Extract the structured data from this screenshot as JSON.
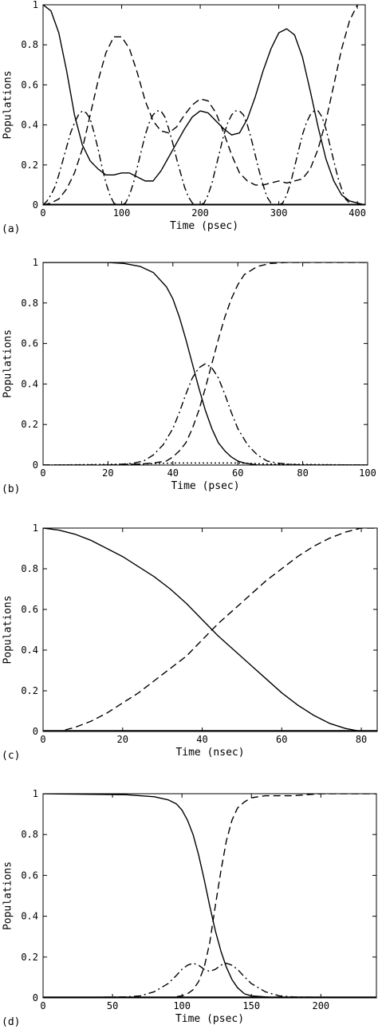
{
  "chart_data": [
    {
      "type": "line",
      "panel_label": "(a)",
      "xlabel": "Time (psec)",
      "ylabel": "Populations",
      "xlim": [
        0,
        410
      ],
      "ylim": [
        0,
        1
      ],
      "xticks": [
        0,
        100,
        200,
        300,
        400
      ],
      "xtick_labels": [
        "0",
        "100",
        "200",
        "300",
        "400"
      ],
      "yticks": [
        0,
        0.2,
        0.4,
        0.6,
        0.8,
        1
      ],
      "ytick_labels": [
        "0",
        "0.2",
        "0.4",
        "0.6",
        "0.8",
        "1"
      ],
      "series": [
        {
          "style": "solid",
          "x": [
            0,
            10,
            20,
            30,
            40,
            50,
            60,
            70,
            80,
            90,
            100,
            110,
            120,
            130,
            140,
            150,
            160,
            170,
            180,
            190,
            200,
            210,
            220,
            230,
            240,
            250,
            260,
            270,
            280,
            290,
            300,
            310,
            320,
            330,
            340,
            350,
            360,
            370,
            380,
            390,
            400,
            410
          ],
          "y": [
            1.0,
            0.97,
            0.86,
            0.67,
            0.45,
            0.3,
            0.22,
            0.18,
            0.15,
            0.15,
            0.16,
            0.16,
            0.14,
            0.12,
            0.12,
            0.17,
            0.24,
            0.31,
            0.38,
            0.44,
            0.47,
            0.46,
            0.42,
            0.38,
            0.35,
            0.36,
            0.43,
            0.54,
            0.67,
            0.78,
            0.86,
            0.88,
            0.85,
            0.74,
            0.57,
            0.39,
            0.23,
            0.12,
            0.05,
            0.02,
            0.01,
            0.0
          ]
        },
        {
          "style": "dashed",
          "x": [
            0,
            10,
            20,
            30,
            40,
            50,
            60,
            70,
            80,
            90,
            100,
            110,
            120,
            130,
            140,
            150,
            160,
            170,
            180,
            190,
            200,
            210,
            220,
            230,
            240,
            250,
            260,
            270,
            280,
            290,
            300,
            310,
            320,
            330,
            340,
            350,
            360,
            370,
            380,
            390,
            400,
            410
          ],
          "y": [
            0.0,
            0.01,
            0.03,
            0.08,
            0.16,
            0.28,
            0.45,
            0.62,
            0.76,
            0.84,
            0.84,
            0.78,
            0.66,
            0.52,
            0.42,
            0.37,
            0.36,
            0.39,
            0.45,
            0.5,
            0.53,
            0.52,
            0.46,
            0.36,
            0.25,
            0.16,
            0.12,
            0.1,
            0.1,
            0.11,
            0.12,
            0.11,
            0.12,
            0.13,
            0.18,
            0.28,
            0.42,
            0.6,
            0.78,
            0.92,
            1.0,
            1.05
          ]
        },
        {
          "style": "dashdot",
          "x": [
            0,
            5,
            10,
            15,
            20,
            25,
            30,
            35,
            40,
            45,
            50,
            55,
            60,
            65,
            70,
            75,
            80,
            85,
            90,
            95,
            100,
            105,
            110,
            115,
            120,
            125,
            130,
            135,
            140,
            145,
            150,
            155,
            160,
            165,
            170,
            175,
            180,
            185,
            190,
            195,
            200,
            205,
            210,
            215,
            220,
            225,
            230,
            235,
            240,
            245,
            250,
            255,
            260,
            265,
            270,
            275,
            280,
            285,
            290,
            295,
            300,
            305,
            310,
            315,
            320,
            325,
            330,
            335,
            340,
            345,
            350,
            355,
            360,
            365,
            370,
            375,
            380,
            385,
            390,
            395,
            400,
            405,
            410
          ],
          "y": [
            0.0,
            0.02,
            0.05,
            0.09,
            0.15,
            0.22,
            0.29,
            0.36,
            0.41,
            0.45,
            0.47,
            0.46,
            0.43,
            0.36,
            0.28,
            0.19,
            0.11,
            0.05,
            0.01,
            0.0,
            0.0,
            0.01,
            0.05,
            0.11,
            0.19,
            0.27,
            0.35,
            0.41,
            0.45,
            0.47,
            0.47,
            0.44,
            0.38,
            0.31,
            0.23,
            0.16,
            0.09,
            0.04,
            0.01,
            0.0,
            0.0,
            0.01,
            0.05,
            0.11,
            0.19,
            0.27,
            0.35,
            0.41,
            0.45,
            0.47,
            0.47,
            0.45,
            0.4,
            0.33,
            0.25,
            0.17,
            0.1,
            0.04,
            0.01,
            0.0,
            0.0,
            0.01,
            0.05,
            0.11,
            0.19,
            0.27,
            0.35,
            0.41,
            0.45,
            0.47,
            0.47,
            0.44,
            0.38,
            0.3,
            0.22,
            0.14,
            0.08,
            0.03,
            0.01,
            0.0,
            0.0,
            0.0,
            0.0
          ]
        },
        {
          "style": "solid",
          "x": [
            0,
            410
          ],
          "y": [
            0.003,
            0.003
          ]
        }
      ]
    },
    {
      "type": "line",
      "panel_label": "(b)",
      "xlabel": "Time (psec)",
      "ylabel": "Populations",
      "xlim": [
        0,
        100
      ],
      "ylim": [
        0,
        1
      ],
      "xticks": [
        0,
        20,
        40,
        60,
        80,
        100
      ],
      "xtick_labels": [
        "0",
        "20",
        "40",
        "60",
        "80",
        "100"
      ],
      "yticks": [
        0,
        0.2,
        0.4,
        0.6,
        0.8,
        1
      ],
      "ytick_labels": [
        "0",
        "0.2",
        "0.4",
        "0.6",
        "0.8",
        "1"
      ],
      "series": [
        {
          "style": "solid",
          "x": [
            0,
            20,
            25,
            30,
            34,
            38,
            40,
            42,
            44,
            46,
            48,
            50,
            52,
            54,
            56,
            58,
            60,
            62,
            64,
            66,
            70,
            75,
            80,
            100
          ],
          "y": [
            1.0,
            1.0,
            0.995,
            0.98,
            0.95,
            0.88,
            0.82,
            0.73,
            0.62,
            0.5,
            0.38,
            0.27,
            0.18,
            0.11,
            0.07,
            0.04,
            0.02,
            0.01,
            0.005,
            0.0,
            0.0,
            0.0,
            0.0,
            0.0
          ]
        },
        {
          "style": "dashed",
          "x": [
            0,
            20,
            30,
            34,
            38,
            40,
            42,
            44,
            46,
            48,
            50,
            52,
            54,
            56,
            58,
            60,
            62,
            64,
            66,
            70,
            75,
            80,
            100
          ],
          "y": [
            0.0,
            0.0,
            0.005,
            0.01,
            0.02,
            0.04,
            0.07,
            0.11,
            0.18,
            0.27,
            0.38,
            0.5,
            0.62,
            0.73,
            0.82,
            0.89,
            0.94,
            0.96,
            0.98,
            0.995,
            1.0,
            1.0,
            1.0
          ]
        },
        {
          "style": "dashdot",
          "x": [
            0,
            20,
            25,
            28,
            31,
            34,
            37,
            40,
            42,
            44,
            46,
            48,
            50,
            52,
            54,
            56,
            58,
            60,
            63,
            66,
            69,
            72,
            75,
            80,
            100
          ],
          "y": [
            0.0,
            0.0,
            0.005,
            0.01,
            0.02,
            0.05,
            0.1,
            0.18,
            0.26,
            0.35,
            0.43,
            0.48,
            0.5,
            0.48,
            0.43,
            0.35,
            0.26,
            0.18,
            0.1,
            0.05,
            0.02,
            0.01,
            0.005,
            0.0,
            0.0
          ]
        },
        {
          "style": "dotted",
          "x": [
            0,
            30,
            40,
            50,
            60,
            70,
            100
          ],
          "y": [
            0.0,
            0.005,
            0.01,
            0.01,
            0.01,
            0.005,
            0.0
          ]
        }
      ]
    },
    {
      "type": "line",
      "panel_label": "(c)",
      "xlabel": "Time (nsec)",
      "ylabel": "Populations",
      "xlim": [
        0,
        84
      ],
      "ylim": [
        0,
        1
      ],
      "xticks": [
        0,
        20,
        40,
        60,
        80
      ],
      "xtick_labels": [
        "0",
        "20",
        "40",
        "60",
        "80"
      ],
      "yticks": [
        0,
        0.2,
        0.4,
        0.6,
        0.8,
        1
      ],
      "ytick_labels": [
        "0",
        "0.2",
        "0.4",
        "0.6",
        "0.8",
        "1"
      ],
      "series": [
        {
          "style": "solid",
          "x": [
            0,
            4,
            8,
            12,
            16,
            20,
            24,
            28,
            32,
            36,
            40,
            42,
            44,
            48,
            52,
            56,
            60,
            64,
            68,
            72,
            76,
            80,
            84
          ],
          "y": [
            1.0,
            0.99,
            0.97,
            0.94,
            0.9,
            0.86,
            0.81,
            0.76,
            0.7,
            0.63,
            0.55,
            0.51,
            0.47,
            0.4,
            0.33,
            0.26,
            0.19,
            0.13,
            0.08,
            0.04,
            0.015,
            0.0,
            0.0
          ]
        },
        {
          "style": "dashed",
          "x": [
            0,
            4,
            8,
            12,
            16,
            20,
            24,
            28,
            32,
            36,
            40,
            42,
            44,
            48,
            52,
            56,
            60,
            64,
            68,
            72,
            76,
            80,
            84
          ],
          "y": [
            0.0,
            0.0,
            0.02,
            0.05,
            0.09,
            0.14,
            0.19,
            0.25,
            0.31,
            0.37,
            0.45,
            0.49,
            0.53,
            0.6,
            0.67,
            0.74,
            0.8,
            0.86,
            0.91,
            0.95,
            0.98,
            1.0,
            1.0
          ]
        },
        {
          "style": "solid",
          "x": [
            0,
            84
          ],
          "y": [
            0.004,
            0.004
          ]
        }
      ]
    },
    {
      "type": "line",
      "panel_label": "(d)",
      "xlabel": "Time (psec)",
      "ylabel": "Populations",
      "xlim": [
        0,
        240
      ],
      "ylim": [
        0,
        1
      ],
      "xticks": [
        0,
        50,
        100,
        150,
        200
      ],
      "xtick_labels": [
        "0",
        "50",
        "100",
        "150",
        "200"
      ],
      "yticks": [
        0,
        0.2,
        0.4,
        0.6,
        0.8,
        1
      ],
      "ytick_labels": [
        "0",
        "0.2",
        "0.4",
        "0.6",
        "0.8",
        "1"
      ],
      "series": [
        {
          "style": "solid",
          "x": [
            0,
            60,
            80,
            90,
            96,
            100,
            104,
            108,
            112,
            116,
            120,
            124,
            128,
            132,
            136,
            140,
            145,
            150,
            160,
            170,
            240
          ],
          "y": [
            1.0,
            0.995,
            0.985,
            0.97,
            0.95,
            0.92,
            0.87,
            0.8,
            0.7,
            0.58,
            0.45,
            0.33,
            0.23,
            0.15,
            0.09,
            0.05,
            0.02,
            0.01,
            0.005,
            0.0,
            0.0
          ]
        },
        {
          "style": "dashed",
          "x": [
            0,
            90,
            100,
            104,
            108,
            112,
            116,
            120,
            124,
            128,
            132,
            136,
            140,
            145,
            150,
            160,
            170,
            180,
            200,
            240
          ],
          "y": [
            0.0,
            0.0,
            0.01,
            0.02,
            0.04,
            0.08,
            0.15,
            0.27,
            0.45,
            0.62,
            0.77,
            0.87,
            0.93,
            0.96,
            0.98,
            0.99,
            0.99,
            0.99,
            1.0,
            1.0
          ]
        },
        {
          "style": "dashdot",
          "x": [
            0,
            60,
            70,
            80,
            90,
            96,
            100,
            104,
            108,
            112,
            116,
            120,
            124,
            128,
            132,
            136,
            140,
            144,
            150,
            160,
            170,
            180,
            240
          ],
          "y": [
            0.0,
            0.005,
            0.01,
            0.03,
            0.07,
            0.11,
            0.14,
            0.16,
            0.17,
            0.16,
            0.14,
            0.13,
            0.14,
            0.16,
            0.17,
            0.16,
            0.14,
            0.11,
            0.07,
            0.03,
            0.01,
            0.005,
            0.0
          ]
        },
        {
          "style": "solid",
          "x": [
            0,
            240
          ],
          "y": [
            0.004,
            0.004
          ]
        }
      ]
    }
  ]
}
